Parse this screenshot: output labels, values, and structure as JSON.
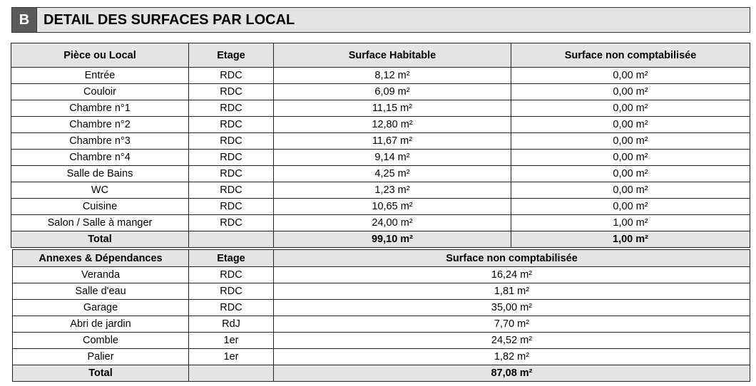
{
  "section": {
    "letter": "B",
    "title": "DETAIL DES SURFACES PAR LOCAL"
  },
  "main_table": {
    "headers": [
      "Pièce ou Local",
      "Etage",
      "Surface Habitable",
      "Surface non comptabilisée"
    ],
    "rows": [
      [
        "Entrée",
        "RDC",
        "8,12 m²",
        "0,00 m²"
      ],
      [
        "Couloir",
        "RDC",
        "6,09 m²",
        "0,00 m²"
      ],
      [
        "Chambre n°1",
        "RDC",
        "11,15 m²",
        "0,00 m²"
      ],
      [
        "Chambre n°2",
        "RDC",
        "12,80 m²",
        "0,00 m²"
      ],
      [
        "Chambre n°3",
        "RDC",
        "11,67 m²",
        "0,00 m²"
      ],
      [
        "Chambre n°4",
        "RDC",
        "9,14 m²",
        "0,00 m²"
      ],
      [
        "Salle de Bains",
        "RDC",
        "4,25 m²",
        "0,00 m²"
      ],
      [
        "WC",
        "RDC",
        "1,23 m²",
        "0,00 m²"
      ],
      [
        "Cuisine",
        "RDC",
        "10,65 m²",
        "0,00 m²"
      ],
      [
        "Salon / Salle à manger",
        "RDC",
        "24,00 m²",
        "1,00 m²"
      ]
    ],
    "total": [
      "Total",
      "",
      "99,10 m²",
      "1,00 m²"
    ]
  },
  "annex_table": {
    "headers": [
      "Annexes & Dépendances",
      "Etage",
      "Surface non comptabilisée"
    ],
    "rows": [
      [
        "Veranda",
        "RDC",
        "16,24 m²"
      ],
      [
        "Salle d'eau",
        "RDC",
        "1,81 m²"
      ],
      [
        "Garage",
        "RDC",
        "35,00 m²"
      ],
      [
        "Abri de jardin",
        "RdJ",
        "7,70 m²"
      ],
      [
        "Comble",
        "1er",
        "24,52 m²"
      ],
      [
        "Palier",
        "1er",
        "1,82 m²"
      ]
    ],
    "total": [
      "Total",
      "",
      "87,08 m²"
    ]
  }
}
